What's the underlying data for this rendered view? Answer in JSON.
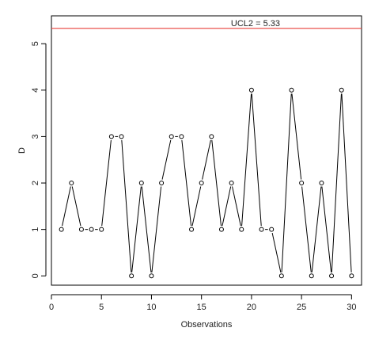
{
  "chart_data": {
    "type": "line",
    "title": "",
    "xlabel": "Observations",
    "ylabel": "D",
    "xlim": [
      0,
      31
    ],
    "ylim": [
      -0.2,
      5.6
    ],
    "x_ticks": [
      0,
      5,
      10,
      15,
      20,
      25,
      30
    ],
    "y_ticks": [
      0,
      1,
      2,
      3,
      4,
      5
    ],
    "grid": false,
    "series": [
      {
        "x": [
          1,
          2,
          3,
          4,
          5,
          6,
          7,
          8,
          9,
          10,
          11,
          12,
          13,
          14,
          15,
          16,
          17,
          18,
          19,
          20,
          21,
          22,
          23,
          24,
          25,
          26,
          27,
          28,
          29,
          30
        ],
        "values": [
          1,
          2,
          1,
          1,
          1,
          3,
          3,
          0,
          2,
          0,
          2,
          3,
          3,
          1,
          2,
          3,
          1,
          2,
          1,
          4,
          1,
          1,
          0,
          4,
          2,
          0,
          2,
          0,
          4,
          0
        ],
        "marker": "open-circle",
        "color": "#000000"
      }
    ],
    "reference_lines": [
      {
        "label": "UCL2 = 5.33",
        "y": 5.33,
        "color": "#e8413c"
      }
    ]
  }
}
